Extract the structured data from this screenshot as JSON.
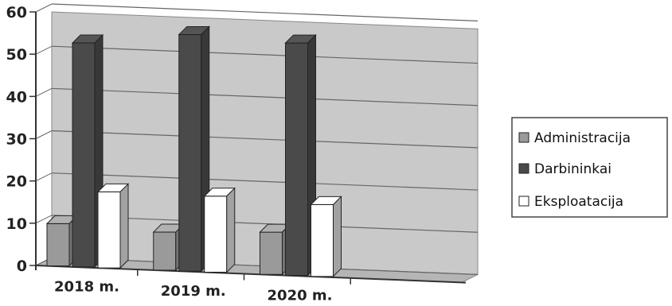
{
  "chart_data": {
    "type": "bar",
    "title": "",
    "xlabel": "",
    "ylabel": "",
    "categories": [
      "2018 m.",
      "2019 m.",
      "2020 m."
    ],
    "series": [
      {
        "name": "Administracija",
        "values": [
          10,
          9,
          10
        ],
        "color": "#9a9a9a"
      },
      {
        "name": "Darbininkai",
        "values": [
          53,
          56,
          55
        ],
        "color": "#4a4a4a"
      },
      {
        "name": "Eksploatacija",
        "values": [
          18,
          18,
          17
        ],
        "color": "#ffffff"
      }
    ],
    "ylim": [
      0,
      60
    ],
    "yticks": [
      0,
      10,
      20,
      30,
      40,
      50,
      60
    ],
    "grid": true,
    "three_d": true,
    "legend_position": "right"
  }
}
